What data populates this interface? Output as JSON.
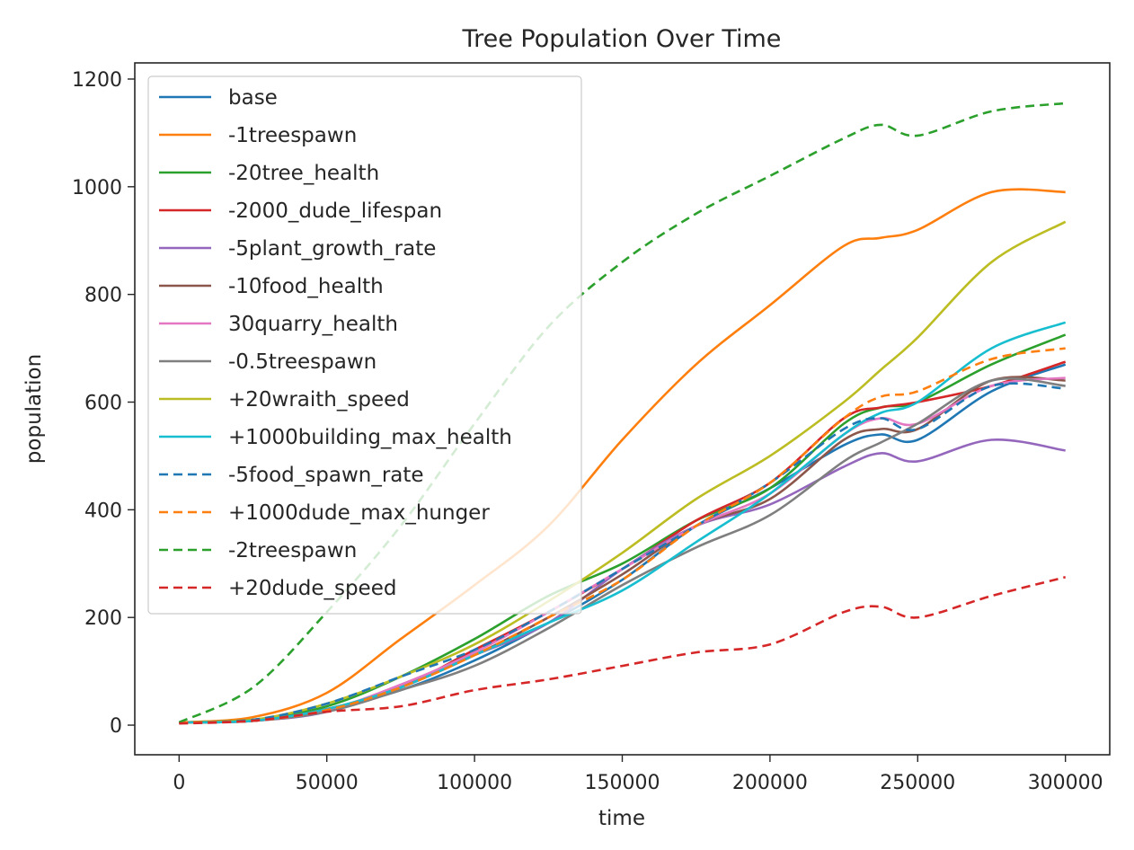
{
  "chart_data": {
    "type": "line",
    "title": "Tree Population Over Time",
    "xlabel": "time",
    "ylabel": "population",
    "xlim": [
      -15000,
      315000
    ],
    "ylim": [
      -55,
      1230
    ],
    "xticks": [
      0,
      50000,
      100000,
      150000,
      200000,
      250000,
      300000
    ],
    "yticks": [
      0,
      200,
      400,
      600,
      800,
      1000,
      1200
    ],
    "legend_position": "upper-left",
    "grid": false,
    "x": [
      0,
      25000,
      50000,
      75000,
      100000,
      125000,
      150000,
      175000,
      200000,
      225000,
      237500,
      250000,
      275000,
      300000
    ],
    "series": [
      {
        "name": "base",
        "color": "#1f77b4",
        "dash": "solid",
        "values": [
          5,
          8,
          30,
          65,
          120,
          190,
          270,
          370,
          440,
          520,
          540,
          530,
          620,
          670
        ]
      },
      {
        "name": "-1treespawn",
        "color": "#ff7f0e",
        "dash": "solid",
        "values": [
          5,
          15,
          60,
          160,
          260,
          370,
          530,
          670,
          780,
          890,
          905,
          920,
          990,
          990
        ]
      },
      {
        "name": "-20tree_health",
        "color": "#2ca02c",
        "dash": "solid",
        "values": [
          5,
          10,
          35,
          90,
          160,
          240,
          300,
          380,
          440,
          560,
          590,
          600,
          670,
          725
        ]
      },
      {
        "name": "-2000_dude_lifespan",
        "color": "#d62728",
        "dash": "solid",
        "values": [
          5,
          8,
          30,
          70,
          140,
          210,
          290,
          380,
          450,
          570,
          590,
          600,
          630,
          675
        ]
      },
      {
        "name": "-5plant_growth_rate",
        "color": "#9467bd",
        "dash": "solid",
        "values": [
          5,
          8,
          25,
          75,
          130,
          190,
          290,
          370,
          410,
          480,
          505,
          490,
          530,
          510
        ]
      },
      {
        "name": "-10food_health",
        "color": "#8c564b",
        "dash": "solid",
        "values": [
          5,
          8,
          28,
          70,
          130,
          200,
          280,
          370,
          420,
          530,
          550,
          550,
          640,
          640
        ]
      },
      {
        "name": "30quarry_health",
        "color": "#e377c2",
        "dash": "solid",
        "values": [
          5,
          8,
          28,
          75,
          135,
          210,
          290,
          370,
          430,
          540,
          570,
          560,
          630,
          645
        ]
      },
      {
        "name": "-0.5treespawn",
        "color": "#7f7f7f",
        "dash": "solid",
        "values": [
          5,
          8,
          25,
          65,
          110,
          180,
          260,
          330,
          390,
          490,
          525,
          560,
          640,
          630
        ]
      },
      {
        "name": "+20wraith_speed",
        "color": "#bcbd22",
        "dash": "solid",
        "values": [
          5,
          10,
          40,
          90,
          150,
          230,
          320,
          420,
          500,
          600,
          660,
          720,
          860,
          935
        ]
      },
      {
        "name": "+1000building_max_health",
        "color": "#17becf",
        "dash": "solid",
        "values": [
          5,
          8,
          30,
          70,
          130,
          190,
          250,
          340,
          430,
          540,
          580,
          600,
          700,
          748
        ]
      },
      {
        "name": "-5food_spawn_rate",
        "color": "#1f77b4",
        "dash": "dashed",
        "values": [
          5,
          10,
          40,
          90,
          140,
          210,
          290,
          370,
          450,
          550,
          570,
          550,
          630,
          625
        ]
      },
      {
        "name": "+1000dude_max_hunger",
        "color": "#ff7f0e",
        "dash": "dashed",
        "values": [
          5,
          8,
          28,
          70,
          130,
          200,
          270,
          370,
          450,
          570,
          610,
          620,
          680,
          700
        ]
      },
      {
        "name": "-2treespawn",
        "color": "#2ca02c",
        "dash": "dashed",
        "values": [
          5,
          70,
          210,
          370,
          560,
          740,
          860,
          950,
          1020,
          1090,
          1115,
          1095,
          1140,
          1155
        ]
      },
      {
        "name": "+20dude_speed",
        "color": "#d62728",
        "dash": "dashed",
        "values": [
          3,
          8,
          25,
          35,
          65,
          85,
          110,
          135,
          150,
          210,
          220,
          200,
          240,
          275
        ]
      }
    ]
  }
}
